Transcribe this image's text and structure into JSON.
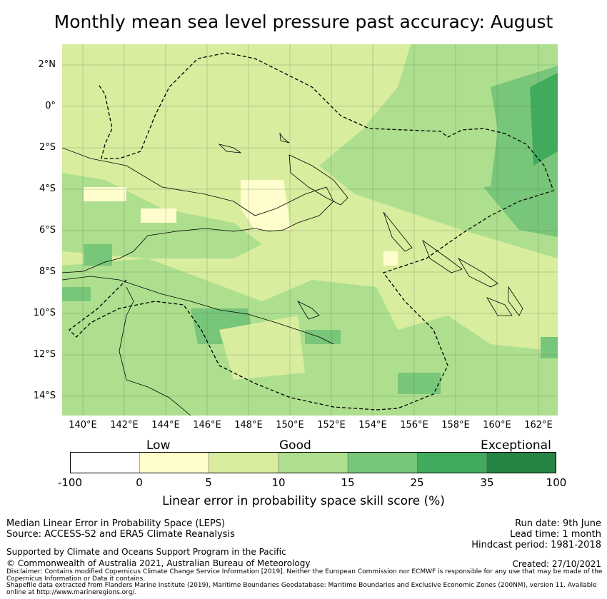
{
  "title": "Monthly mean sea level pressure past accuracy: August",
  "map": {
    "lat_labels": [
      "2°N",
      "0°",
      "2°S",
      "4°S",
      "6°S",
      "8°S",
      "10°S",
      "12°S",
      "14°S"
    ],
    "lon_labels": [
      "140°E",
      "142°E",
      "144°E",
      "146°E",
      "148°E",
      "150°E",
      "152°E",
      "154°E",
      "156°E",
      "158°E",
      "160°E",
      "162°E"
    ],
    "extent": {
      "lon": [
        139.0,
        163.0
      ],
      "lat": [
        -15.0,
        3.0
      ]
    },
    "grid": true
  },
  "colorbar": {
    "categories": [
      "Low",
      "Good",
      "Exceptional"
    ],
    "ticks": [
      "-100",
      "0",
      "5",
      "10",
      "15",
      "25",
      "35",
      "100"
    ],
    "colors": [
      "#ffffff",
      "#fffdcc",
      "#d9ed9f",
      "#addf8e",
      "#78c679",
      "#41ab5d",
      "#238443"
    ],
    "label": "Linear error in probability space skill score (%)"
  },
  "footer": {
    "line1": "Median Linear Error in Probability Space (LEPS)",
    "line2": "Source: ACCESS-S2 and ERA5 Climate Reanalysis",
    "run_date": "Run date: 9th June",
    "lead_time": "Lead time: 1 month",
    "hindcast": "Hindcast period: 1981-2018",
    "support": "Supported by Climate and Oceans Support Program in the Pacific",
    "copyright": "© Commonwealth of Australia 2021, Australian Bureau of Meteorology",
    "created": "Created: 27/10/2021",
    "disclaimer": "Disclaimer: Contains modified Copernicus Climate Change Service Information [2019]. Neither the European Commission nor ECMWF is responsible for any use that may be made of the Copernicus Information or Data it contains.",
    "shapefile": "Shapefile data extracted from Flanders Marine Institute (2019), Maritime Boundaries Geodatabase: Maritime Boundaries and Exclusive Economic Zones (200NM), version 11. Available online at http://www.marineregions.org/."
  }
}
